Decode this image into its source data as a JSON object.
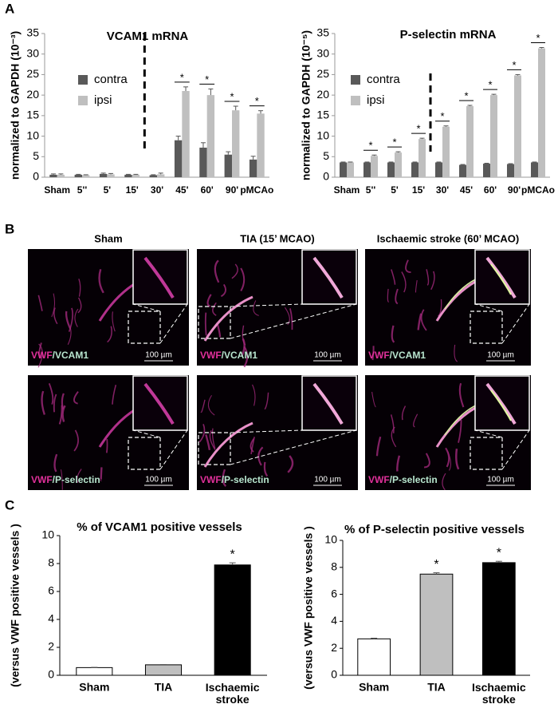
{
  "panel_labels": [
    "A",
    "B",
    "C"
  ],
  "chart_data": [
    {
      "type": "grouped-bar",
      "title": "VCAM1  mRNA",
      "y_label": "normalized to GAPDH (10⁻³)",
      "categories": [
        "Sham",
        "5''",
        "5'",
        "15'",
        "30'",
        "45'",
        "60'",
        "90'",
        "pMCAo"
      ],
      "series": [
        {
          "name": "contra",
          "color": "#595959",
          "values": [
            0.6,
            0.6,
            0.8,
            0.6,
            0.5,
            9,
            7.2,
            5.5,
            4.3
          ],
          "errors": [
            0.2,
            0.1,
            0.2,
            0.1,
            0.1,
            1,
            1.2,
            0.7,
            0.8
          ]
        },
        {
          "name": "ipsi",
          "color": "#bfbfbf",
          "values": [
            0.6,
            0.5,
            0.7,
            0.6,
            0.7,
            21,
            20,
            16.3,
            15.5
          ],
          "errors": [
            0.2,
            0.1,
            0.2,
            0.1,
            0.3,
            1,
            1.5,
            1,
            0.7
          ]
        }
      ],
      "significance": [
        null,
        null,
        null,
        null,
        null,
        "*",
        "*",
        "*",
        "*"
      ],
      "ylim": [
        0,
        35
      ],
      "yticks": [
        0,
        5,
        10,
        15,
        20,
        25,
        30,
        35
      ]
    },
    {
      "type": "grouped-bar",
      "title": "P-selectin mRNA",
      "y_label": "normalized to GAPDH (10⁻⁵)",
      "categories": [
        "Sham",
        "5''",
        "5'",
        "15'",
        "30'",
        "45'",
        "60'",
        "90'",
        "pMCAo"
      ],
      "series": [
        {
          "name": "contra",
          "color": "#595959",
          "values": [
            3.6,
            3.6,
            3.6,
            3.6,
            3.6,
            3.0,
            3.3,
            3.2,
            3.6
          ],
          "errors": [
            0.1,
            0.1,
            0.1,
            0.1,
            0.1,
            0.1,
            0.1,
            0.1,
            0.1
          ]
        },
        {
          "name": "ipsi",
          "color": "#bfbfbf",
          "values": [
            3.6,
            5.2,
            6.0,
            9.3,
            12.3,
            17.3,
            20.0,
            24.8,
            31.4
          ],
          "errors": [
            0.1,
            0.2,
            0.2,
            0.2,
            0.2,
            0.2,
            0.2,
            0.2,
            0.2
          ]
        }
      ],
      "significance": [
        null,
        "*",
        "*",
        "*",
        "*",
        "*",
        "*",
        "*",
        "*"
      ],
      "ylim": [
        0,
        35
      ],
      "yticks": [
        0,
        5,
        10,
        15,
        20,
        25,
        30,
        35
      ]
    },
    {
      "type": "bar",
      "title": "% of VCAM1 positive vessels",
      "y_label": "(versus VWF positive vessels )",
      "categories": [
        "Sham",
        "TIA",
        "Ischaemic stroke"
      ],
      "values": [
        0.55,
        0.75,
        7.9
      ],
      "errors": [
        0.02,
        0.02,
        0.15
      ],
      "colors": [
        "#ffffff",
        "#bfbfbf",
        "#000000"
      ],
      "significance": [
        null,
        null,
        "*"
      ],
      "ylim": [
        0,
        10
      ],
      "yticks": [
        0,
        2,
        4,
        6,
        8,
        10
      ]
    },
    {
      "type": "bar",
      "title": "% of P-selectin positive vessels",
      "y_label": "(versus VWF positive vessels )",
      "categories": [
        "Sham",
        "TIA",
        "Ischaemic stroke"
      ],
      "values": [
        2.7,
        7.5,
        8.35
      ],
      "errors": [
        0.05,
        0.1,
        0.1
      ],
      "colors": [
        "#ffffff",
        "#bfbfbf",
        "#000000"
      ],
      "significance": [
        null,
        "*",
        "*"
      ],
      "ylim": [
        0,
        10
      ],
      "yticks": [
        0,
        2,
        4,
        6,
        8,
        10
      ]
    }
  ],
  "micrographs": {
    "columns": [
      "Sham",
      "TIA (15’ MCAO)",
      "Ischaemic stroke (60’ MCAO)"
    ],
    "rows": [
      {
        "stain": "VWF",
        "target": "/VCAM1"
      },
      {
        "stain": "VWF",
        "target": "/P-selectin"
      }
    ],
    "scale_bar": "100 µm"
  }
}
